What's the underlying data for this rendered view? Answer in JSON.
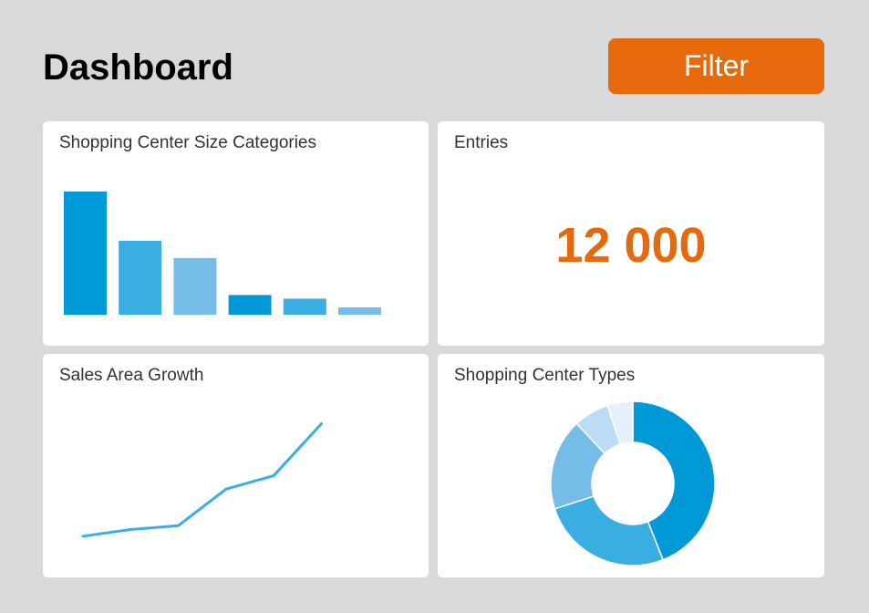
{
  "header": {
    "title": "Dashboard",
    "filter_label": "Filter"
  },
  "colors": {
    "accent": "#e66a0c",
    "series_dark": "#0099d8",
    "series_mid": "#3aaee3",
    "series_light": "#74bde9",
    "series_pale": "#bcdcf5",
    "series_palest": "#e4f0fb",
    "background": "#d8d9db"
  },
  "cards": {
    "size_categories": {
      "title": "Shopping Center Size Categories"
    },
    "entries": {
      "title": "Entries",
      "value": "12 000"
    },
    "sales_growth": {
      "title": "Sales Area Growth"
    },
    "center_types": {
      "title": "Shopping Center Types"
    }
  },
  "chart_data": [
    {
      "type": "bar",
      "title": "Shopping Center Size Categories",
      "categories": [
        "",
        "",
        "",
        "",
        "",
        ""
      ],
      "values": [
        100,
        60,
        46,
        16,
        13,
        6
      ],
      "ylim": [
        0,
        100
      ],
      "bar_colors": [
        "#0099d8",
        "#3aaee3",
        "#74bde9",
        "#0099d8",
        "#3aaee3",
        "#74bde9"
      ],
      "grid": false,
      "legend": "none"
    },
    {
      "type": "line",
      "title": "Sales Area Growth",
      "x": [
        1,
        2,
        3,
        4,
        5,
        6
      ],
      "values": [
        3,
        10,
        14,
        52,
        66,
        120
      ],
      "ylim": [
        0,
        130
      ],
      "color": "#3aaee3",
      "grid": false,
      "legend": "none"
    },
    {
      "type": "pie",
      "title": "Shopping Center Types",
      "values": [
        44,
        26,
        18,
        7,
        5
      ],
      "slice_colors": [
        "#0099d8",
        "#3aaee3",
        "#74bde9",
        "#bcdcf5",
        "#e4f0fb"
      ],
      "donut": true,
      "legend": "none"
    }
  ]
}
